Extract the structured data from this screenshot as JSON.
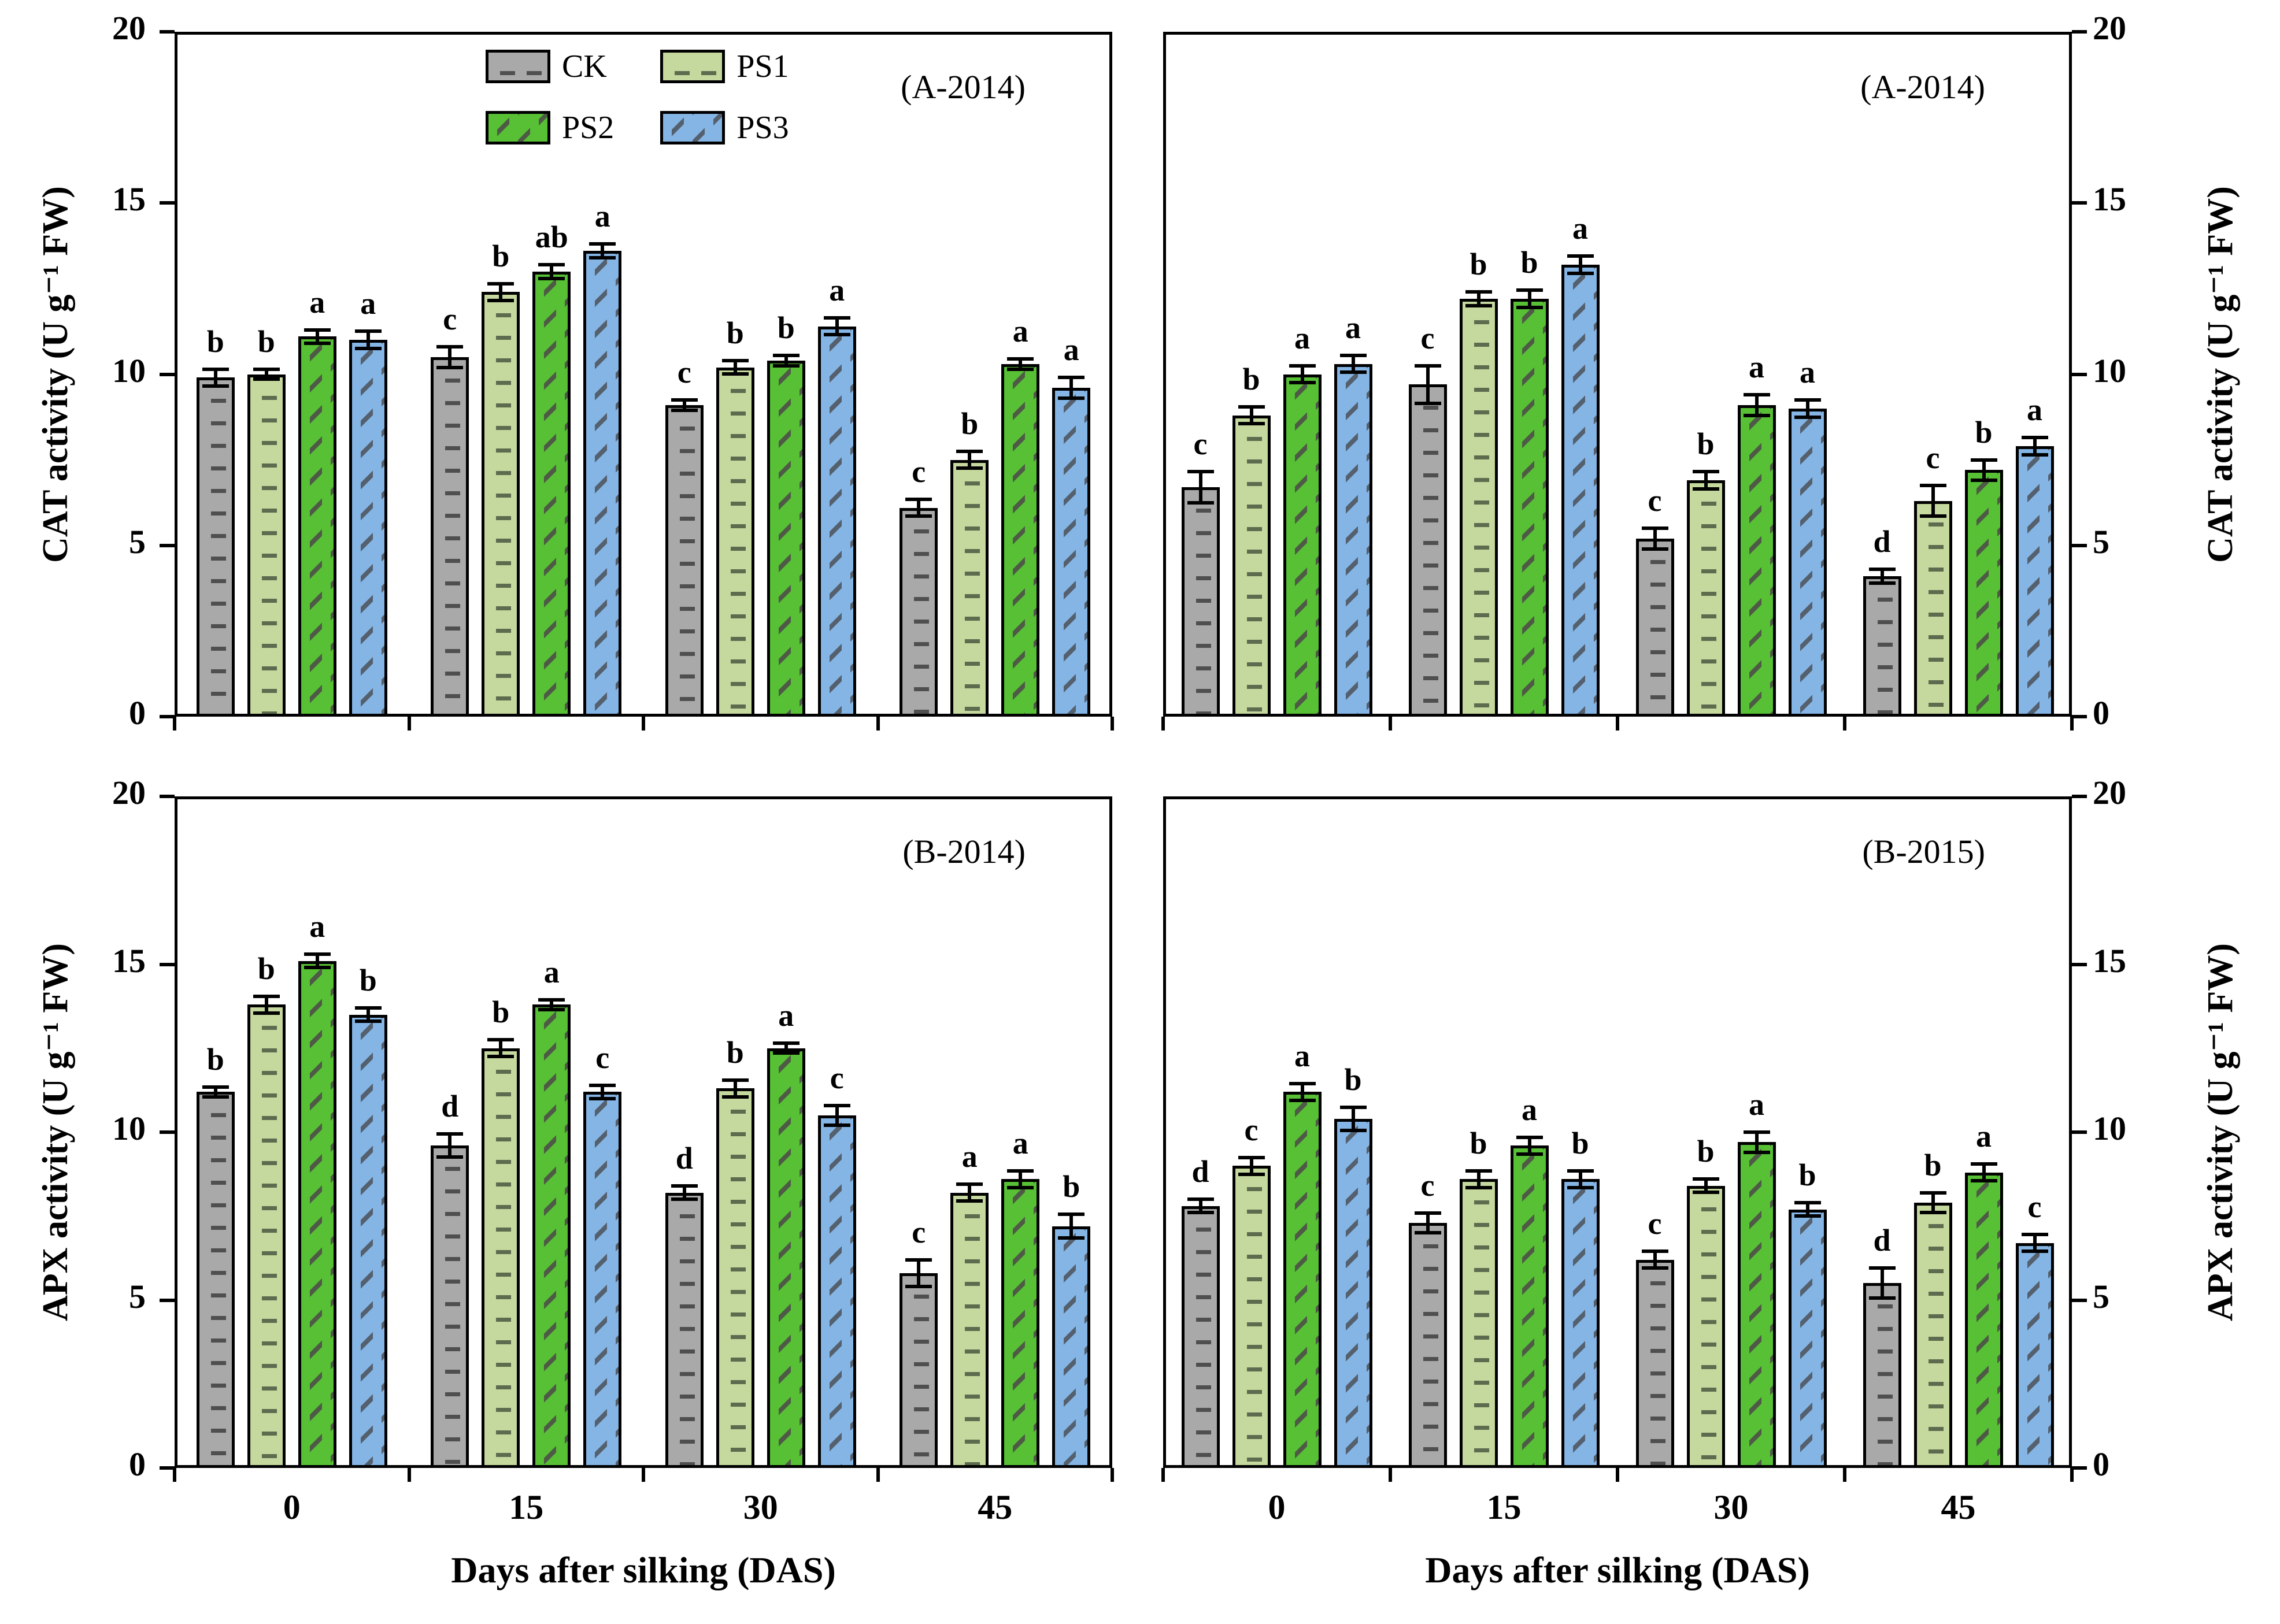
{
  "chart_data": {
    "type": "bar",
    "categories": [
      "0",
      "15",
      "30",
      "45"
    ],
    "series_names": [
      "CK",
      "PS1",
      "PS2",
      "PS3"
    ],
    "x_axis_title": "Days after silking (DAS)",
    "y_ticks": [
      0,
      5,
      10,
      15,
      20
    ],
    "ylim": [
      0,
      20
    ],
    "grid": false,
    "legend_position": "top-left-panel-inside",
    "series_styles": {
      "CK": {
        "fill": "#a9a9a9",
        "hatch": "#4f4f4f",
        "pattern": "horizontal-dash"
      },
      "PS1": {
        "fill": "#c5d89d",
        "hatch": "#5d6b4e",
        "pattern": "horizontal-dash"
      },
      "PS2": {
        "fill": "#57c035",
        "hatch": "#4e5a46",
        "pattern": "diagonal-dash"
      },
      "PS3": {
        "fill": "#84b5e4",
        "hatch": "#55606e",
        "pattern": "diagonal-dash"
      }
    },
    "panels": [
      {
        "label": "(A-2014)",
        "ylabel": "CAT activity (U g⁻¹ FW)",
        "axis_side": "left",
        "show_x_labels": false,
        "show_legend": true,
        "series": [
          {
            "name": "CK",
            "values": [
              9.9,
              10.5,
              9.1,
              6.1
            ],
            "errors": [
              0.3,
              0.35,
              0.2,
              0.3
            ],
            "letters": [
              "b",
              "c",
              "c",
              "c"
            ]
          },
          {
            "name": "PS1",
            "values": [
              10.0,
              12.4,
              10.2,
              7.5
            ],
            "errors": [
              0.2,
              0.3,
              0.25,
              0.3
            ],
            "letters": [
              "b",
              "b",
              "b",
              "b"
            ]
          },
          {
            "name": "PS2",
            "values": [
              11.1,
              13.0,
              10.4,
              10.3
            ],
            "errors": [
              0.25,
              0.25,
              0.2,
              0.2
            ],
            "letters": [
              "a",
              "ab",
              "b",
              "a"
            ]
          },
          {
            "name": "PS3",
            "values": [
              11.0,
              13.6,
              11.4,
              9.6
            ],
            "errors": [
              0.3,
              0.25,
              0.3,
              0.35
            ],
            "letters": [
              "a",
              "a",
              "a",
              "a"
            ]
          }
        ]
      },
      {
        "label": "(A-2014)",
        "ylabel": "CAT activity (U g⁻¹ FW)",
        "axis_side": "right",
        "show_x_labels": false,
        "show_legend": false,
        "series": [
          {
            "name": "CK",
            "values": [
              6.7,
              9.7,
              5.2,
              4.1
            ],
            "errors": [
              0.5,
              0.6,
              0.35,
              0.25
            ],
            "letters": [
              "c",
              "c",
              "c",
              "d"
            ]
          },
          {
            "name": "PS1",
            "values": [
              8.8,
              12.2,
              6.9,
              6.3
            ],
            "errors": [
              0.3,
              0.25,
              0.3,
              0.5
            ],
            "letters": [
              "b",
              "b",
              "b",
              "c"
            ]
          },
          {
            "name": "PS2",
            "values": [
              10.0,
              12.2,
              9.1,
              7.2
            ],
            "errors": [
              0.3,
              0.3,
              0.35,
              0.35
            ],
            "letters": [
              "a",
              "b",
              "a",
              "b"
            ]
          },
          {
            "name": "PS3",
            "values": [
              10.3,
              13.2,
              9.0,
              7.9
            ],
            "errors": [
              0.3,
              0.3,
              0.3,
              0.3
            ],
            "letters": [
              "a",
              "a",
              "a",
              "a"
            ]
          }
        ]
      },
      {
        "label": "(B-2014)",
        "ylabel": "APX activity (U g⁻¹ FW)",
        "axis_side": "left",
        "show_x_labels": true,
        "show_legend": false,
        "series": [
          {
            "name": "CK",
            "values": [
              11.2,
              9.6,
              8.2,
              5.8
            ],
            "errors": [
              0.2,
              0.4,
              0.25,
              0.45
            ],
            "letters": [
              "b",
              "d",
              "d",
              "c"
            ]
          },
          {
            "name": "PS1",
            "values": [
              13.8,
              12.5,
              11.3,
              8.2
            ],
            "errors": [
              0.3,
              0.3,
              0.3,
              0.3
            ],
            "letters": [
              "b",
              "b",
              "b",
              "a"
            ]
          },
          {
            "name": "PS2",
            "values": [
              15.1,
              13.8,
              12.5,
              8.6
            ],
            "errors": [
              0.25,
              0.2,
              0.2,
              0.3
            ],
            "letters": [
              "a",
              "a",
              "a",
              "a"
            ]
          },
          {
            "name": "PS3",
            "values": [
              13.5,
              11.2,
              10.5,
              7.2
            ],
            "errors": [
              0.25,
              0.25,
              0.35,
              0.4
            ],
            "letters": [
              "b",
              "c",
              "c",
              "b"
            ]
          }
        ]
      },
      {
        "label": "(B-2015)",
        "ylabel": "APX activity (U g⁻¹ FW)",
        "axis_side": "right",
        "show_x_labels": true,
        "show_legend": false,
        "series": [
          {
            "name": "CK",
            "values": [
              7.8,
              7.3,
              6.2,
              5.5
            ],
            "errors": [
              0.25,
              0.35,
              0.3,
              0.5
            ],
            "letters": [
              "d",
              "c",
              "c",
              "d"
            ]
          },
          {
            "name": "PS1",
            "values": [
              9.0,
              8.6,
              8.4,
              7.9
            ],
            "errors": [
              0.3,
              0.3,
              0.25,
              0.35
            ],
            "letters": [
              "c",
              "b",
              "b",
              "b"
            ]
          },
          {
            "name": "PS2",
            "values": [
              11.2,
              9.6,
              9.7,
              8.8
            ],
            "errors": [
              0.3,
              0.3,
              0.35,
              0.3
            ],
            "letters": [
              "a",
              "a",
              "a",
              "a"
            ]
          },
          {
            "name": "PS3",
            "values": [
              10.4,
              8.6,
              7.7,
              6.7
            ],
            "errors": [
              0.4,
              0.3,
              0.25,
              0.3
            ],
            "letters": [
              "b",
              "b",
              "b",
              "c"
            ]
          }
        ]
      }
    ]
  }
}
